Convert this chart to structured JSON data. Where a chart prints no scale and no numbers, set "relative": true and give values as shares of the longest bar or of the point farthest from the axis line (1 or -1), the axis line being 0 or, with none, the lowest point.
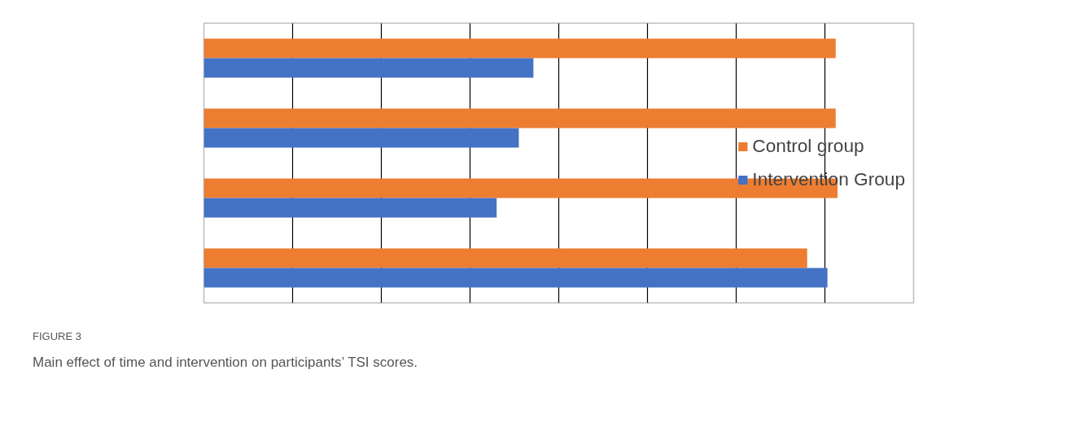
{
  "chart_data": {
    "type": "bar",
    "orientation": "horizontal",
    "relative": true,
    "categories": [
      null,
      null,
      null,
      null
    ],
    "series": [
      {
        "name": "Control group",
        "color": "#ed7d31",
        "values": [
          0.997,
          0.997,
          1,
          0.952
        ]
      },
      {
        "name": "Intervention Group",
        "color": "#4472c4",
        "values": [
          0.52,
          0.497,
          0.462,
          0.984
        ]
      }
    ],
    "grid": "x",
    "legend": "right",
    "annotations": [
      "FIGURE 3",
      "Main effect of time and intervention on participants’ TSI scores."
    ]
  }
}
